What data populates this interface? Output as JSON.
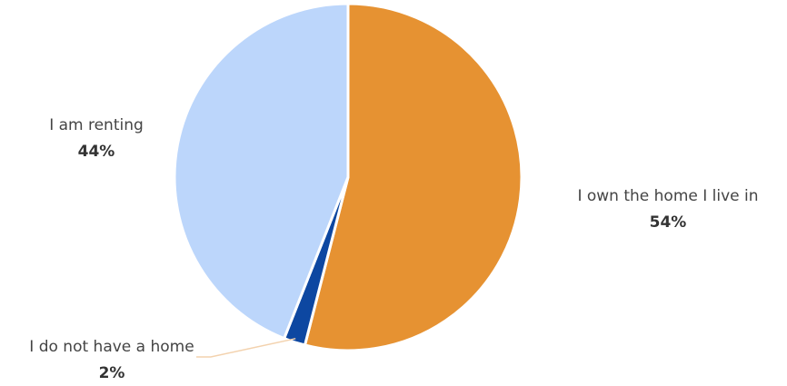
{
  "chart_data": {
    "type": "pie",
    "title": "",
    "slices": [
      {
        "label": "I own the home I live in",
        "value": 54,
        "display": "54%",
        "color": "#E69232"
      },
      {
        "label": "I do not have a home",
        "value": 2,
        "display": "2%",
        "color": "#0D47A1"
      },
      {
        "label": "I am renting",
        "value": 44,
        "display": "44%",
        "color": "#BCD6FB"
      }
    ],
    "legend": "none",
    "start_angle_deg": 0,
    "direction": "clockwise"
  }
}
